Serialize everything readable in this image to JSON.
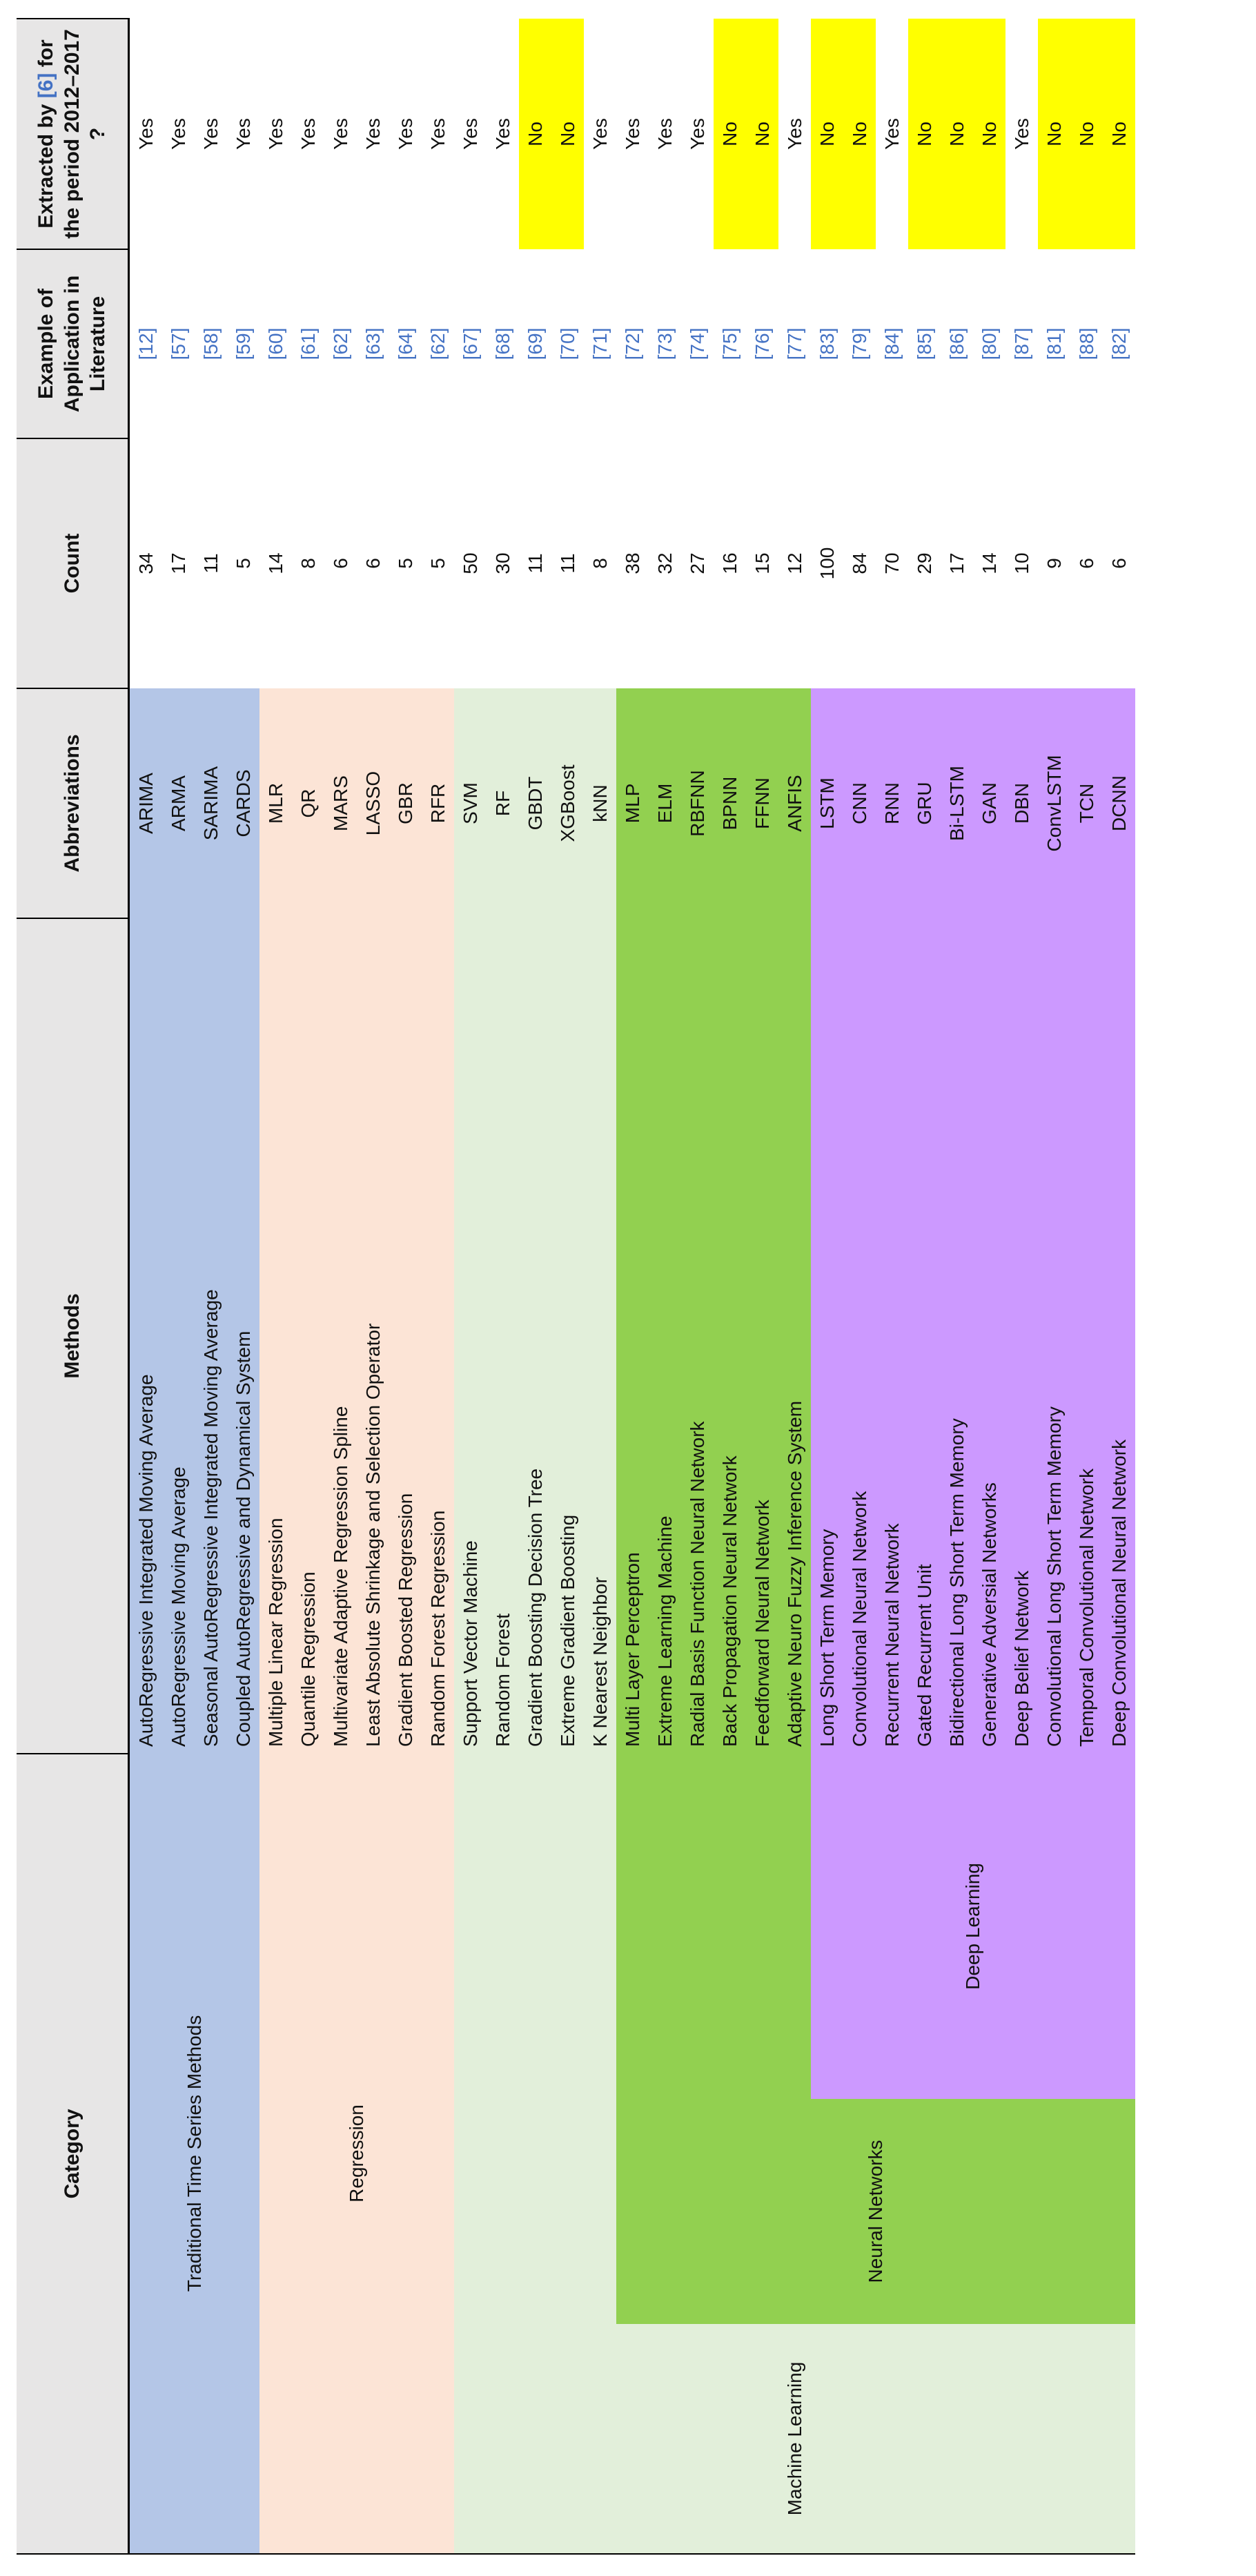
{
  "header": {
    "category": "Category",
    "methods": "Methods",
    "abbreviations": "Abbreviations",
    "count": "Count",
    "example": "Example of Application in Literature",
    "extracted": [
      "Extracted by",
      "[6]",
      "for the period 2012–2017 ?"
    ]
  },
  "no_highlight": "#ffff00",
  "sections": [
    {
      "category": "Traditional Time Series Methods",
      "color": "#b4c6e7",
      "rows": [
        {
          "method": "AutoRegressive Integrated Moving Average",
          "abbreviation": "ARIMA",
          "count": 34,
          "reference": "[12]",
          "extracted": "Yes"
        },
        {
          "method": "AutoRegressive Moving Average",
          "abbreviation": "ARMA",
          "count": 17,
          "reference": "[57]",
          "extracted": "Yes"
        },
        {
          "method": "Seasonal AutoRegressive Integrated Moving Average",
          "abbreviation": "SARIMA",
          "count": 11,
          "reference": "[58]",
          "extracted": "Yes"
        },
        {
          "method": "Coupled AutoRegressive and Dynamical System",
          "abbreviation": "CARDS",
          "count": 5,
          "reference": "[59]",
          "extracted": "Yes"
        }
      ]
    },
    {
      "category": "Regression",
      "color": "#fce4d6",
      "rows": [
        {
          "method": "Multiple Linear Regression",
          "abbreviation": "MLR",
          "count": 14,
          "reference": "[60]",
          "extracted": "Yes"
        },
        {
          "method": "Quantile Regression",
          "abbreviation": "QR",
          "count": 8,
          "reference": "[61]",
          "extracted": "Yes"
        },
        {
          "method": "Multivariate Adaptive Regression Spline",
          "abbreviation": "MARS",
          "count": 6,
          "reference": "[62]",
          "extracted": "Yes"
        },
        {
          "method": "Least Absolute Shrinkage and Selection Operator",
          "abbreviation": "LASSO",
          "count": 6,
          "reference": "[63]",
          "extracted": "Yes"
        },
        {
          "method": "Gradient Boosted Regression",
          "abbreviation": "GBR",
          "count": 5,
          "reference": "[64]",
          "extracted": "Yes"
        },
        {
          "method": "Random Forest Regression",
          "abbreviation": "RFR",
          "count": 5,
          "reference": "[62]",
          "extracted": "Yes"
        }
      ]
    },
    {
      "category": "Machine Learning",
      "color": "#e2efda",
      "rows": [
        {
          "method": "Support Vector Machine",
          "abbreviation": "SVM",
          "count": 50,
          "reference": "[67]",
          "extracted": "Yes"
        },
        {
          "method": "Random Forest",
          "abbreviation": "RF",
          "count": 30,
          "reference": "[68]",
          "extracted": "Yes"
        },
        {
          "method": "Gradient Boosting Decision Tree",
          "abbreviation": "GBDT",
          "count": 11,
          "reference": "[69]",
          "extracted": "No"
        },
        {
          "method": "Extreme Gradient Boosting",
          "abbreviation": "XGBoost",
          "count": 11,
          "reference": "[70]",
          "extracted": "No"
        },
        {
          "method": "K Nearest Neighbor",
          "abbreviation": "kNN",
          "count": 8,
          "reference": "[71]",
          "extracted": "Yes"
        }
      ],
      "children": [
        {
          "category": "Neural Networks",
          "color": "#92d050",
          "rows": [
            {
              "method": "Multi Layer Perceptron",
              "abbreviation": "MLP",
              "count": 38,
              "reference": "[72]",
              "extracted": "Yes"
            },
            {
              "method": "Extreme Learning Machine",
              "abbreviation": "ELM",
              "count": 32,
              "reference": "[73]",
              "extracted": "Yes"
            },
            {
              "method": "Radial Basis Function Neural Network",
              "abbreviation": "RBFNN",
              "count": 27,
              "reference": "[74]",
              "extracted": "Yes"
            },
            {
              "method": "Back Propagation Neural Network",
              "abbreviation": "BPNN",
              "count": 16,
              "reference": "[75]",
              "extracted": "No"
            },
            {
              "method": "Feedforward Neural Network",
              "abbreviation": "FFNN",
              "count": 15,
              "reference": "[76]",
              "extracted": "No"
            },
            {
              "method": "Adaptive Neuro Fuzzy Inference System",
              "abbreviation": "ANFIS",
              "count": 12,
              "reference": "[77]",
              "extracted": "Yes"
            }
          ],
          "children": [
            {
              "category": "Deep Learning",
              "color": "#cc99ff",
              "rows": [
                {
                  "method": "Long Short Term Memory",
                  "abbreviation": "LSTM",
                  "count": 100,
                  "reference": "[83]",
                  "extracted": "No"
                },
                {
                  "method": "Convolutional Neural Network",
                  "abbreviation": "CNN",
                  "count": 84,
                  "reference": "[79]",
                  "extracted": "No"
                },
                {
                  "method": "Recurrent Neural Network",
                  "abbreviation": "RNN",
                  "count": 70,
                  "reference": "[84]",
                  "extracted": "Yes"
                },
                {
                  "method": "Gated Recurrent Unit",
                  "abbreviation": "GRU",
                  "count": 29,
                  "reference": "[85]",
                  "extracted": "No"
                },
                {
                  "method": "Bidirectional Long Short Term Memory",
                  "abbreviation": "Bi-LSTM",
                  "count": 17,
                  "reference": "[86]",
                  "extracted": "No"
                },
                {
                  "method": "Generative Adversial Networks",
                  "abbreviation": "GAN",
                  "count": 14,
                  "reference": "[80]",
                  "extracted": "No"
                },
                {
                  "method": "Deep Belief Network",
                  "abbreviation": "DBN",
                  "count": 10,
                  "reference": "[87]",
                  "extracted": "Yes"
                },
                {
                  "method": "Convolutional Long Short Term Memory",
                  "abbreviation": "ConvLSTM",
                  "count": 9,
                  "reference": "[81]",
                  "extracted": "No"
                },
                {
                  "method": "Temporal Convolutional Network",
                  "abbreviation": "TCN",
                  "count": 6,
                  "reference": "[88]",
                  "extracted": "No"
                },
                {
                  "method": "Deep Convolutional Neural Network",
                  "abbreviation": "DCNN",
                  "count": 6,
                  "reference": "[82]",
                  "extracted": "No"
                }
              ]
            }
          ]
        }
      ]
    }
  ]
}
